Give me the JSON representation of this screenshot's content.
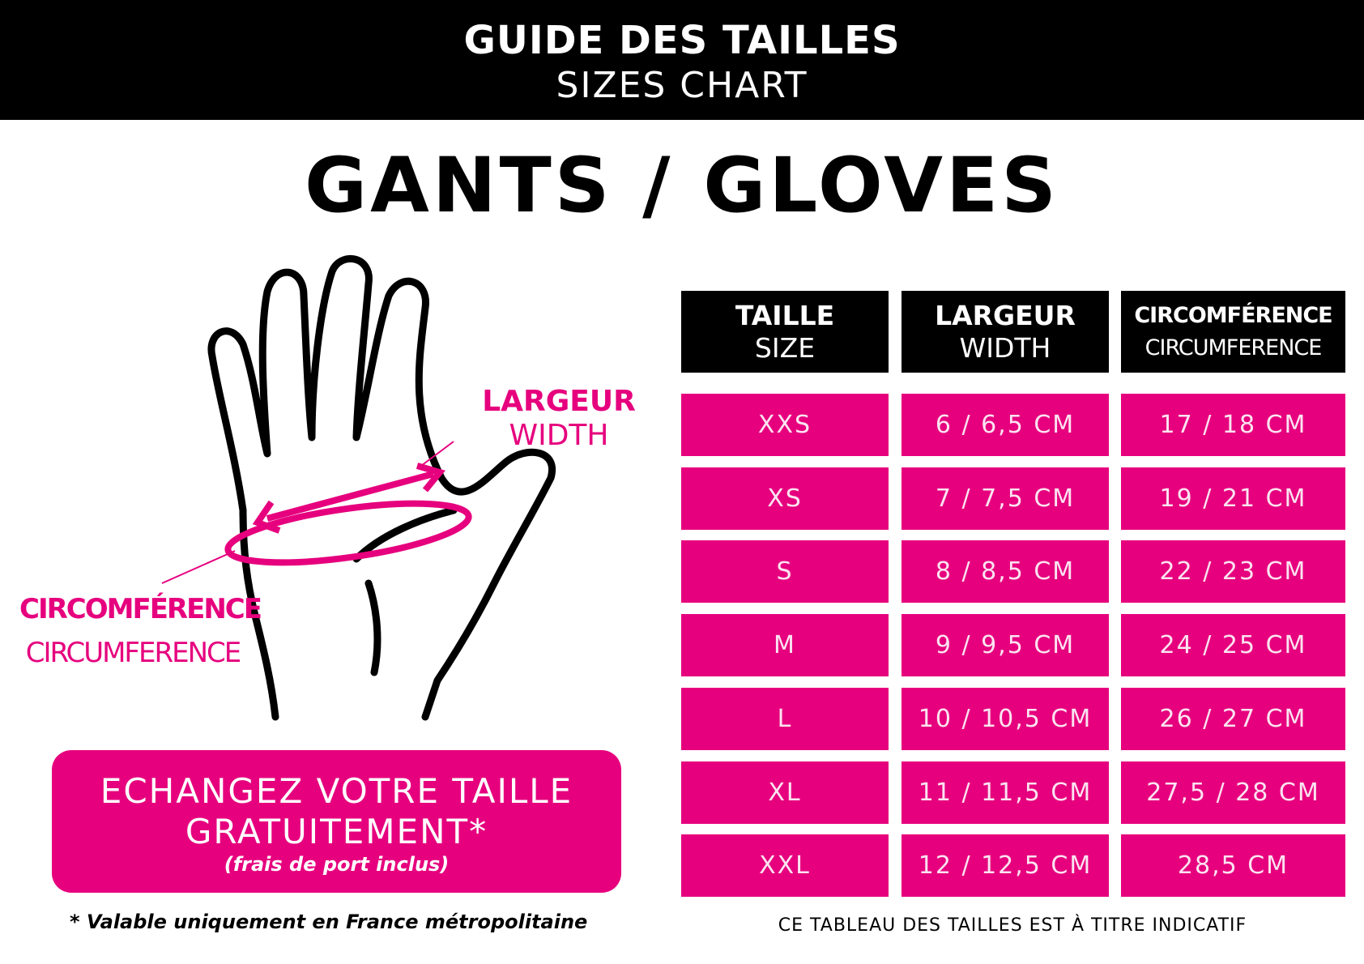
{
  "header": {
    "title_fr": "GUIDE DES TAILLES",
    "title_en": "SIZES CHART"
  },
  "page_title": "GANTS / GLOVES",
  "diagram": {
    "width_label_fr": "LARGEUR",
    "width_label_en": "WIDTH",
    "circ_label_fr": "CIRCOMFÉRENCE",
    "circ_label_en": "CIRCUMFERENCE"
  },
  "table": {
    "headers": [
      {
        "fr": "TAILLE",
        "en": "SIZE"
      },
      {
        "fr": "LARGEUR",
        "en": "WIDTH"
      },
      {
        "fr": "CIRCOMFÉRENCE",
        "en": "CIRCUMFERENCE"
      }
    ],
    "rows": [
      [
        "XXS",
        "6 / 6,5 CM",
        "17 / 18 CM"
      ],
      [
        "XS",
        "7 / 7,5 CM",
        "19 / 21 CM"
      ],
      [
        "S",
        "8 / 8,5 CM",
        "22 / 23 CM"
      ],
      [
        "M",
        "9 / 9,5 CM",
        "24 / 25 CM"
      ],
      [
        "L",
        "10 / 10,5 CM",
        "26 / 27 CM"
      ],
      [
        "XL",
        "11 / 11,5 CM",
        "27,5 / 28 CM"
      ],
      [
        "XXL",
        "12 / 12,5 CM",
        "28,5 CM"
      ]
    ]
  },
  "promo": {
    "line1": "ECHANGEZ VOTRE TAILLE",
    "line2": "GRATUITEMENT*",
    "line3": "(frais de port inclus)"
  },
  "footnote": "* Valable uniquement en France métropolitaine",
  "note": "CE TABLEAU DES TAILLES EST À TITRE INDICATIF",
  "colors": {
    "accent": "#e6007e",
    "dark": "#000000"
  }
}
